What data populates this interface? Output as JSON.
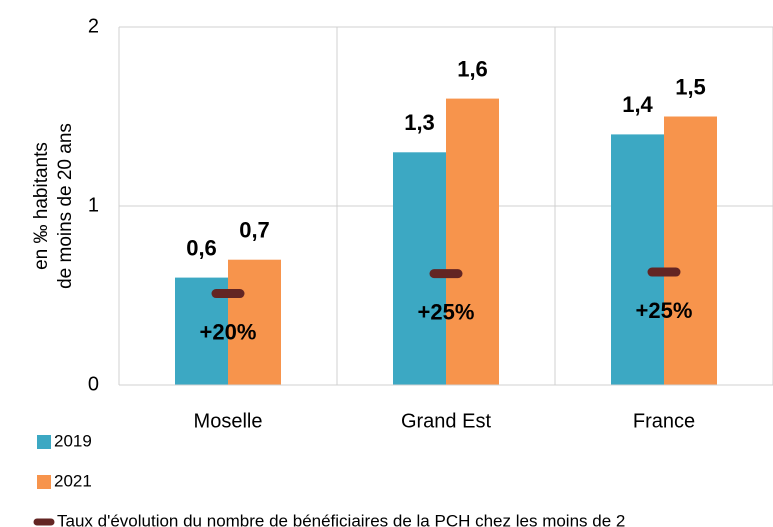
{
  "chart_data": {
    "type": "bar",
    "y_label": [
      "en ‰ habitants",
      "de moins de 20 ans"
    ],
    "categories": [
      "Moselle",
      "Grand Est",
      "France"
    ],
    "series": [
      {
        "name": "2019",
        "color": "#3ca8c3",
        "label_color": "#31849b",
        "values": [
          0.6,
          1.3,
          1.4
        ],
        "value_labels": [
          "0,6",
          "1,3",
          "1,4"
        ]
      },
      {
        "name": "2021",
        "color": "#f7944c",
        "label_color": "#e46c0a",
        "values": [
          0.7,
          1.6,
          1.5
        ],
        "value_labels": [
          "0,7",
          "1,6",
          "1,5"
        ]
      },
      {
        "name": "Taux d'évolution du nombre de bénéficiaires de la PCH chez les moins de 2",
        "type": "marker",
        "axis": "y2",
        "color": "#632523",
        "values": [
          20,
          25,
          25.4
        ],
        "value_labels": [
          "+20%",
          "+25%",
          "+25%"
        ]
      }
    ],
    "ylim": [
      0,
      2
    ],
    "yticks": [
      0,
      1,
      2
    ],
    "y2lim": [
      -3,
      87
    ],
    "grid": true,
    "legend": "bottom-left"
  }
}
